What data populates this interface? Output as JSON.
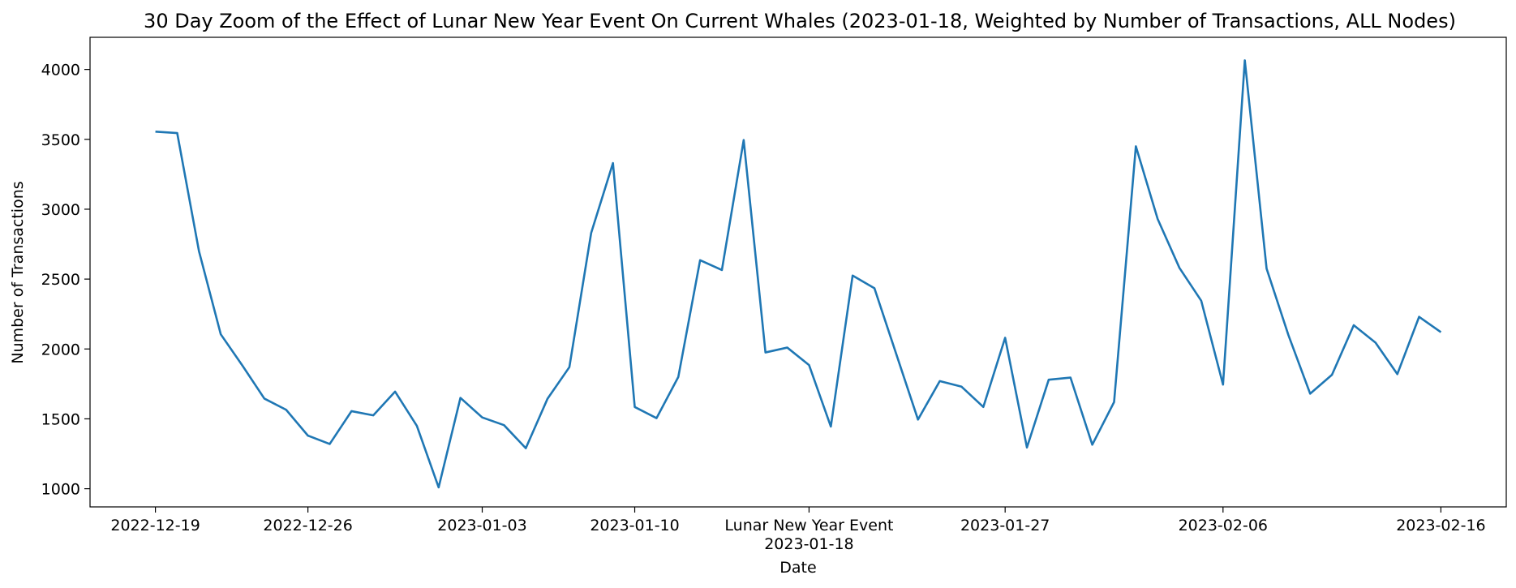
{
  "chart_data": {
    "type": "line",
    "title": "30 Day Zoom of the Effect of Lunar New Year Event On Current Whales (2023-01-18, Weighted by Number of Transactions, ALL Nodes)",
    "xlabel": "Date",
    "ylabel": "Number of Transactions",
    "ylim": [
      870,
      4230
    ],
    "yticks": [
      1000,
      1500,
      2000,
      2500,
      3000,
      3500,
      4000
    ],
    "xlim": [
      "2022-12-16",
      "2023-02-19"
    ],
    "xticks": [
      {
        "date": "2022-12-19",
        "label": "2022-12-19"
      },
      {
        "date": "2022-12-26",
        "label": "2022-12-26"
      },
      {
        "date": "2023-01-03",
        "label": "2023-01-03"
      },
      {
        "date": "2023-01-10",
        "label": "2023-01-10"
      },
      {
        "date": "2023-01-18",
        "label": "Lunar New Year Event\n2023-01-18"
      },
      {
        "date": "2023-01-27",
        "label": "2023-01-27"
      },
      {
        "date": "2023-02-06",
        "label": "2023-02-06"
      },
      {
        "date": "2023-02-16",
        "label": "2023-02-16"
      }
    ],
    "grid": false,
    "color": "#1f77b4",
    "series": [
      {
        "x": [
          "2022-12-19",
          "2022-12-20",
          "2022-12-21",
          "2022-12-22",
          "2022-12-23",
          "2022-12-24",
          "2022-12-25",
          "2022-12-26",
          "2022-12-27",
          "2022-12-28",
          "2022-12-29",
          "2022-12-30",
          "2022-12-31",
          "2023-01-01",
          "2023-01-02",
          "2023-01-03",
          "2023-01-04",
          "2023-01-05",
          "2023-01-06",
          "2023-01-07",
          "2023-01-08",
          "2023-01-09",
          "2023-01-10",
          "2023-01-11",
          "2023-01-12",
          "2023-01-13",
          "2023-01-14",
          "2023-01-15",
          "2023-01-16",
          "2023-01-17",
          "2023-01-18",
          "2023-01-19",
          "2023-01-20",
          "2023-01-21",
          "2023-01-22",
          "2023-01-23",
          "2023-01-24",
          "2023-01-25",
          "2023-01-26",
          "2023-01-27",
          "2023-01-28",
          "2023-01-29",
          "2023-01-30",
          "2023-01-31",
          "2023-02-01",
          "2023-02-02",
          "2023-02-03",
          "2023-02-04",
          "2023-02-05",
          "2023-02-06",
          "2023-02-07",
          "2023-02-08",
          "2023-02-09",
          "2023-02-10",
          "2023-02-11",
          "2023-02-12",
          "2023-02-13",
          "2023-02-14",
          "2023-02-15",
          "2023-02-16"
        ],
        "values": [
          3555,
          3545,
          2700,
          2105,
          1880,
          1645,
          1565,
          1380,
          1320,
          1555,
          1525,
          1695,
          1450,
          1010,
          1650,
          1510,
          1455,
          1290,
          1645,
          1870,
          2830,
          3330,
          1585,
          1505,
          1800,
          2635,
          2565,
          3495,
          1975,
          2010,
          1885,
          1445,
          2525,
          2435,
          1965,
          1495,
          1770,
          1730,
          1585,
          2080,
          1295,
          1780,
          1795,
          1315,
          1620,
          3450,
          2930,
          2580,
          2345,
          1745,
          4065,
          2575,
          2100,
          1680,
          1815,
          2170,
          2045,
          1820,
          2230,
          2120
        ]
      }
    ]
  }
}
